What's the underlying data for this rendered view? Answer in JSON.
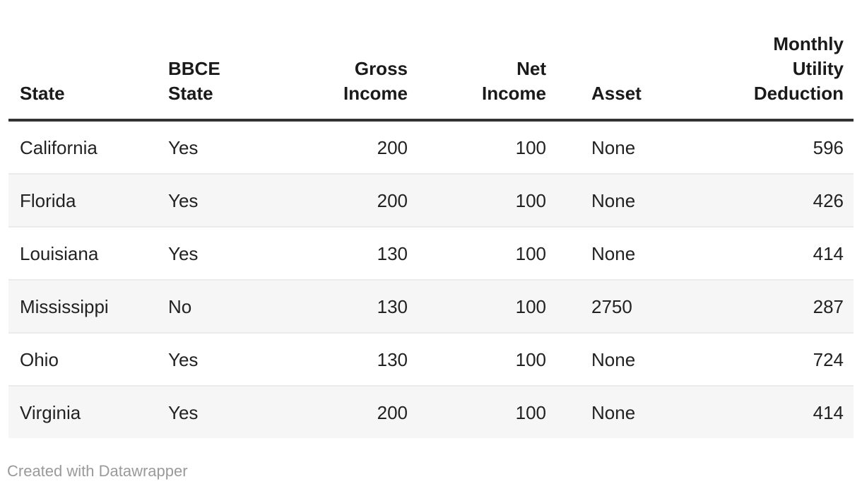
{
  "chart_data": {
    "type": "table",
    "columns": [
      "State",
      "BBCE State",
      "Gross Income",
      "Net Income",
      "Asset",
      "Monthly Utility Deduction"
    ],
    "rows": [
      [
        "California",
        "Yes",
        "200",
        "100",
        "None",
        "596"
      ],
      [
        "Florida",
        "Yes",
        "200",
        "100",
        "None",
        "426"
      ],
      [
        "Louisiana",
        "Yes",
        "130",
        "100",
        "None",
        "414"
      ],
      [
        "Mississippi",
        "No",
        "130",
        "100",
        "2750",
        "287"
      ],
      [
        "Ohio",
        "Yes",
        "130",
        "100",
        "None",
        "724"
      ],
      [
        "Virginia",
        "Yes",
        "200",
        "100",
        "None",
        "414"
      ]
    ],
    "title": "",
    "layout_hints": {
      "column_alignments": [
        "left",
        "left",
        "right",
        "right",
        "left",
        "right"
      ],
      "striped_rows": "even",
      "header_rule": true
    }
  },
  "header": {
    "labels": [
      "State",
      "BBCE\nState",
      "Gross\nIncome",
      "Net\nIncome",
      "Asset",
      "Monthly\nUtility\nDeduction"
    ]
  },
  "footer": {
    "credit": "Created with Datawrapper"
  },
  "colors": {
    "background": "#ffffff",
    "header_text": "#1a1a1a",
    "body_text": "#222222",
    "header_rule": "#333333",
    "row_stripe": "#f6f6f6",
    "row_divider": "#ebebeb",
    "credit_text": "#9a9a9a"
  }
}
